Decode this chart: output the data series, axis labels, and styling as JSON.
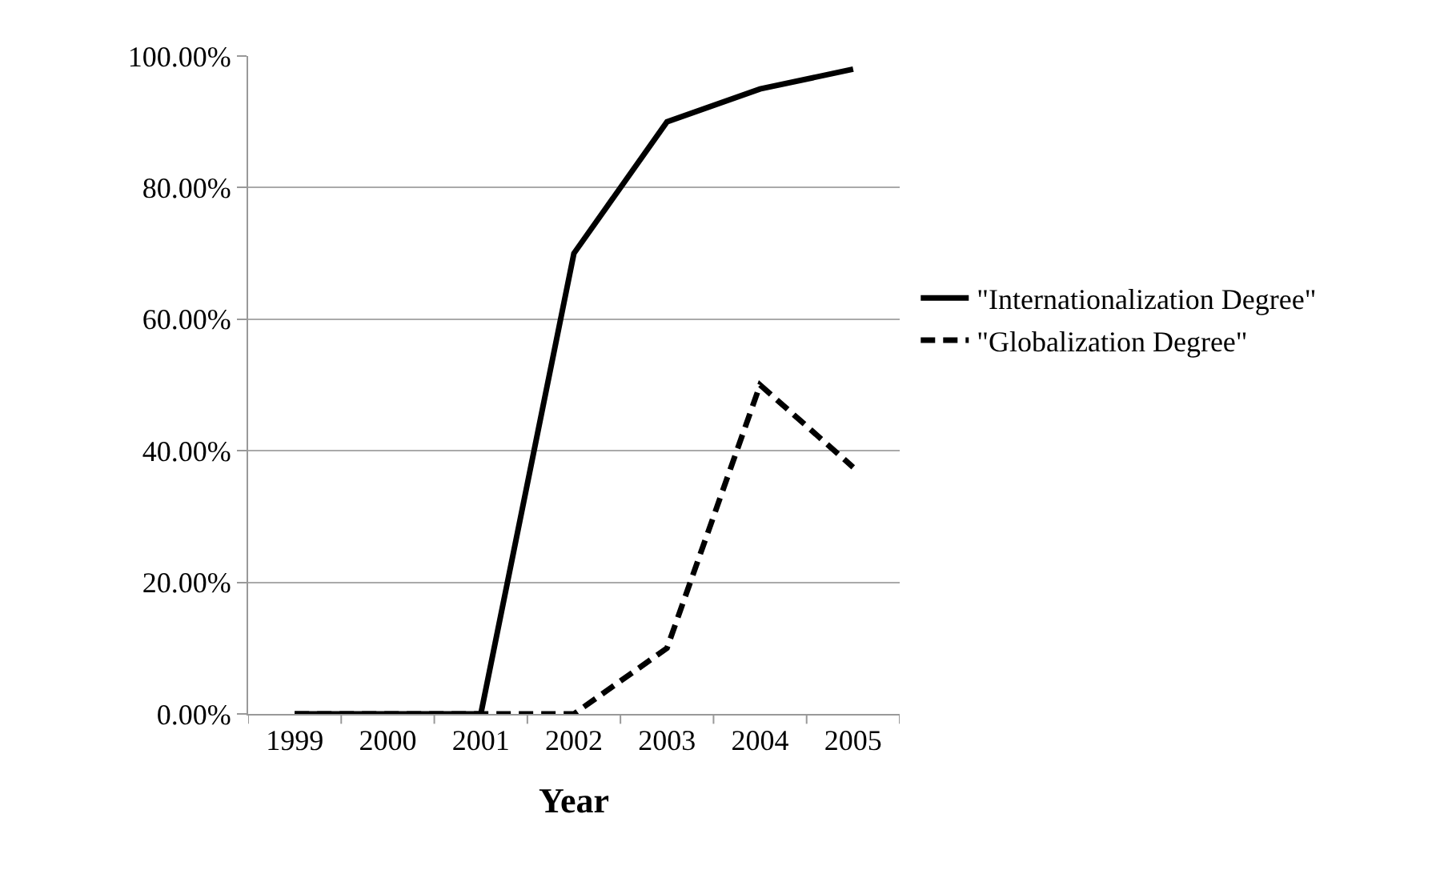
{
  "chart_data": {
    "type": "line",
    "xlabel": "Year",
    "categories": [
      "1999",
      "2000",
      "2001",
      "2002",
      "2003",
      "2004",
      "2005"
    ],
    "series": [
      {
        "name": "\"Internationalization Degree\"",
        "color": "#000000",
        "line_style": "solid",
        "values": [
          0,
          0,
          0,
          70,
          90,
          95,
          98
        ]
      },
      {
        "name": "\"Globalization Degree\"",
        "color": "#000000",
        "line_style": "dashed",
        "values": [
          0,
          0,
          0,
          0,
          10,
          50,
          37.5
        ]
      }
    ],
    "ylim": [
      0,
      100
    ],
    "yticks": [
      {
        "value": 0,
        "label": "0.00%"
      },
      {
        "value": 20,
        "label": "20.00%"
      },
      {
        "value": 40,
        "label": "40.00%"
      },
      {
        "value": 60,
        "label": "60.00%"
      },
      {
        "value": 80,
        "label": "80.00%"
      },
      {
        "value": 100,
        "label": "100.00%"
      }
    ],
    "grid": "y",
    "legend": "right"
  }
}
